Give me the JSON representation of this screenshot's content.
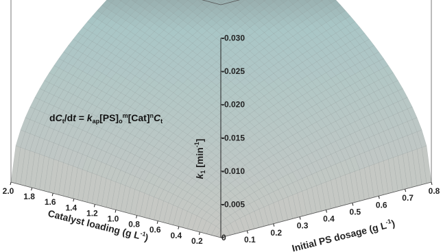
{
  "chart_data": {
    "type": "surface",
    "equation": {
      "prefix": "d",
      "C": "C",
      "C_sub": "t",
      "slash_d": "/d",
      "t_var": "t",
      "equals": " = ",
      "k": "k",
      "k_sub": "ap",
      "ps": "[PS]",
      "ps_sub": "o",
      "ps_sup": "m",
      "cat": "[Cat]",
      "cat_sup": "n",
      "C2": "C",
      "C2_sub": "t"
    },
    "z_axis": {
      "label_k": "k",
      "label_sub": "1",
      "label_unit_open": " [min",
      "label_unit_sup": "-1",
      "label_unit_close": "]",
      "ticks": [
        "0",
        "-0.005",
        "-0.010",
        "-0.015",
        "-0.020",
        "-0.025",
        "-0.030"
      ],
      "tick_values": [
        0,
        0.005,
        0.01,
        0.015,
        0.02,
        0.025,
        0.03
      ],
      "range": [
        0,
        0.035
      ]
    },
    "x_axis": {
      "label": "Initial PS dosage (g L",
      "label_sup": "-1",
      "label_close": ")",
      "ticks": [
        "0.1",
        "0.2",
        "0.3",
        "0.4",
        "0.5",
        "0.6",
        "0.7",
        "0.8"
      ],
      "range": [
        0,
        0.8
      ]
    },
    "y_axis": {
      "label": "Catalyst loading (g L",
      "label_sup": "-1",
      "label_close": ")",
      "ticks": [
        "0.2",
        "0.4",
        "0.6",
        "0.8",
        "1.0",
        "1.2",
        "1.4",
        "1.6",
        "1.8",
        "2.0"
      ],
      "range": [
        0,
        2.0
      ]
    },
    "surface": {
      "k1_max": 0.035,
      "ps_exponent": 0.5,
      "cat_exponent": 0.5,
      "color_low": "#c8c8c4",
      "color_mid": "#a9c6c6",
      "color_high": "#5e5e5e"
    }
  }
}
